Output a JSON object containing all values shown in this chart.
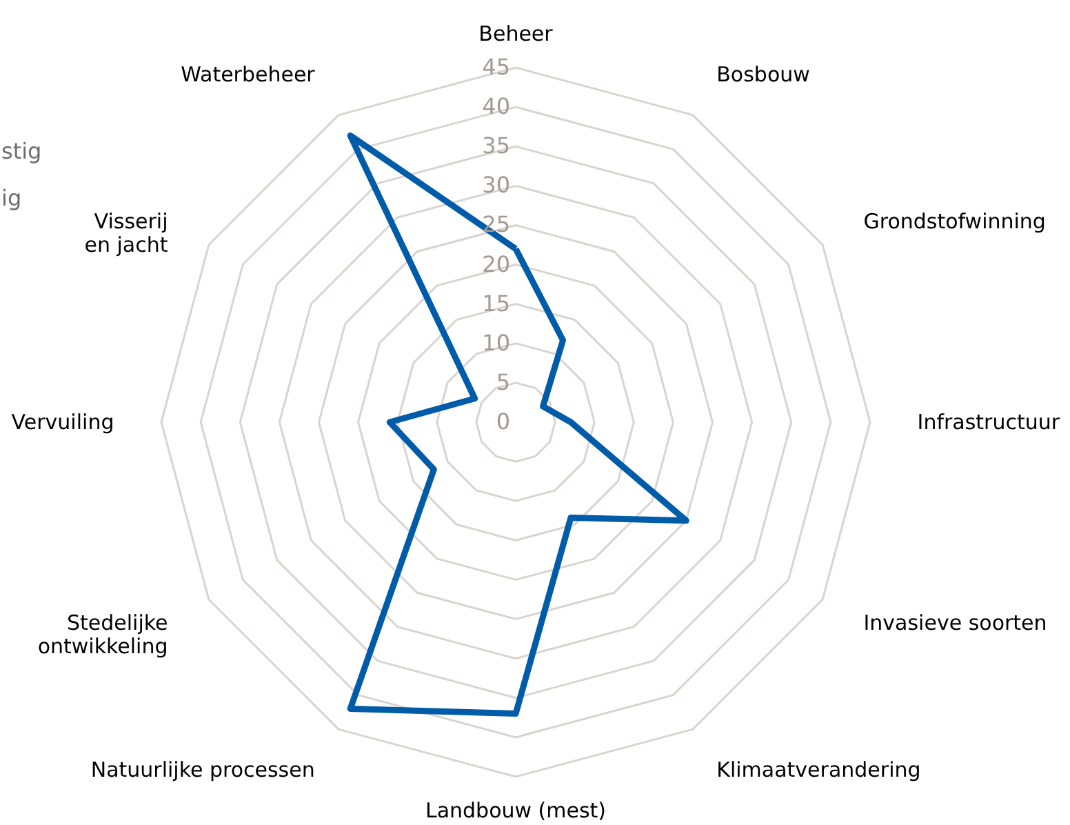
{
  "chart_data": {
    "type": "radar",
    "categories": [
      "Beheer",
      "Bosbouw",
      "Grondstofwinning",
      "Infrastructuur",
      "Invasieve soorten",
      "Klimaatverandering",
      "Landbouw (mest)",
      "Natuurlijke processen",
      "Stedelijke\nontwikkeling",
      "Vervuiling",
      "Visserij\nen jacht",
      "Waterbeheer"
    ],
    "series": [
      {
        "color": "#005ca9",
        "values": [
          22,
          12,
          4,
          7,
          25,
          14,
          37,
          42,
          12,
          16,
          6,
          42
        ]
      }
    ],
    "ylim": [
      0,
      45
    ],
    "yticks": [
      0,
      5,
      10,
      15,
      20,
      25,
      30,
      35,
      40,
      45
    ],
    "grid": true,
    "annotations": [
      "stig",
      "ig"
    ]
  }
}
